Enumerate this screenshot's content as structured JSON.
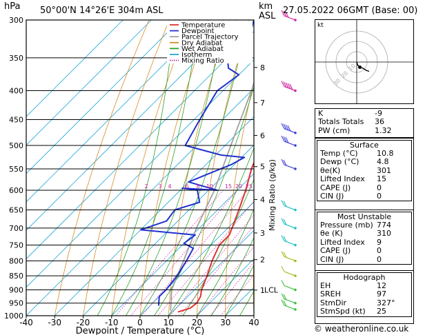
{
  "header": {
    "hpa_label": "hPa",
    "location": "50°00'N  14°26'E  304m  ASL",
    "km_label": "km",
    "asl_label": "ASL",
    "datetime": "27.05.2022  06GMT  (Base: 00)"
  },
  "chart_data": {
    "type": "skew-t",
    "title": "50°00'N  14°26'E  304m  ASL",
    "xlabel": "Dewpoint / Temperature (°C)",
    "ylabel": "hPa",
    "right_axis_label": "Mixing Ratio (g/kg)",
    "xlim": [
      -40,
      40
    ],
    "ylim": [
      1000,
      300
    ],
    "pressure_ticks": [
      300,
      350,
      400,
      450,
      500,
      550,
      600,
      650,
      700,
      750,
      800,
      850,
      900,
      950,
      1000
    ],
    "temp_ticks": [
      -40,
      -30,
      -20,
      -10,
      0,
      10,
      20,
      30,
      40
    ],
    "km_ticks": [
      {
        "label": "8",
        "p": 364
      },
      {
        "label": "7",
        "p": 420
      },
      {
        "label": "6",
        "p": 480
      },
      {
        "label": "5",
        "p": 545
      },
      {
        "label": "4",
        "p": 623
      },
      {
        "label": "3",
        "p": 714
      },
      {
        "label": "2",
        "p": 796
      },
      {
        "label": "1",
        "p": 901
      }
    ],
    "lcl_label": "LCL",
    "lcl_p": 900,
    "mixing_ratio_labels": [
      "2",
      "3",
      "4",
      "6",
      "8",
      "10",
      "15",
      "20",
      "25"
    ],
    "legend": [
      "Temperature",
      "Dewpoint",
      "Parcel Trajectory",
      "Dry Adiabat",
      "Wet Adiabat",
      "Isotherm",
      "Mixing Ratio"
    ],
    "temperature_profile": [
      {
        "p": 985,
        "t": 12
      },
      {
        "p": 970,
        "t": 15
      },
      {
        "p": 950,
        "t": 15.5
      },
      {
        "p": 925,
        "t": 14.5
      },
      {
        "p": 900,
        "t": 12.5
      },
      {
        "p": 850,
        "t": 9.5
      },
      {
        "p": 800,
        "t": 6
      },
      {
        "p": 750,
        "t": 3
      },
      {
        "p": 720,
        "t": 3
      },
      {
        "p": 700,
        "t": 1.5
      },
      {
        "p": 650,
        "t": -2.5
      },
      {
        "p": 600,
        "t": -7
      },
      {
        "p": 550,
        "t": -12.5
      },
      {
        "p": 500,
        "t": -17.5
      },
      {
        "p": 450,
        "t": -24.5
      },
      {
        "p": 400,
        "t": -31.5
      },
      {
        "p": 350,
        "t": -39.5
      },
      {
        "p": 300,
        "t": -48
      }
    ],
    "dewpoint_profile": [
      {
        "p": 960,
        "t": 3
      },
      {
        "p": 925,
        "t": 0
      },
      {
        "p": 900,
        "t": 0
      },
      {
        "p": 850,
        "t": -1
      },
      {
        "p": 800,
        "t": -3
      },
      {
        "p": 760,
        "t": -5
      },
      {
        "p": 745,
        "t": -10
      },
      {
        "p": 720,
        "t": -9
      },
      {
        "p": 705,
        "t": -30
      },
      {
        "p": 680,
        "t": -24
      },
      {
        "p": 650,
        "t": -25
      },
      {
        "p": 630,
        "t": -19
      },
      {
        "p": 600,
        "t": -24
      },
      {
        "p": 595,
        "t": -30
      },
      {
        "p": 600,
        "t": -17
      },
      {
        "p": 580,
        "t": -30
      },
      {
        "p": 540,
        "t": -21
      },
      {
        "p": 525,
        "t": -19
      },
      {
        "p": 520,
        "t": -28
      },
      {
        "p": 500,
        "t": -44
      },
      {
        "p": 450,
        "t": -48
      },
      {
        "p": 400,
        "t": -52
      },
      {
        "p": 375,
        "t": -50
      },
      {
        "p": 365,
        "t": -56
      },
      {
        "p": 350,
        "t": -60
      },
      {
        "p": 335,
        "t": -57
      },
      {
        "p": 300,
        "t": -64
      }
    ],
    "parcel_profile": [
      {
        "p": 980,
        "t": 9
      },
      {
        "p": 900,
        "t": 2
      },
      {
        "p": 850,
        "t": -1
      },
      {
        "p": 800,
        "t": -4
      },
      {
        "p": 700,
        "t": -11
      },
      {
        "p": 600,
        "t": -18
      },
      {
        "p": 500,
        "t": -28
      },
      {
        "p": 400,
        "t": -40
      },
      {
        "p": 300,
        "t": -57
      }
    ],
    "wind_barbs": [
      {
        "p": 300,
        "speed": 30
      },
      {
        "p": 400,
        "speed": 45
      },
      {
        "p": 475,
        "speed": 35
      },
      {
        "p": 500,
        "speed": 30
      },
      {
        "p": 550,
        "speed": 20
      },
      {
        "p": 650,
        "speed": 15
      },
      {
        "p": 700,
        "speed": 15
      },
      {
        "p": 750,
        "speed": 15
      },
      {
        "p": 800,
        "speed": 15
      },
      {
        "p": 850,
        "speed": 10
      },
      {
        "p": 900,
        "speed": 10
      },
      {
        "p": 950,
        "speed": 15
      },
      {
        "p": 975,
        "speed": 15
      }
    ]
  },
  "hodograph": {
    "unit_label": "kt",
    "ring_labels": [
      "10",
      "20",
      "30"
    ],
    "points": [
      [
        0,
        0
      ],
      [
        1,
        -3
      ],
      [
        3,
        -5
      ],
      [
        6,
        -6
      ],
      [
        9,
        -8
      ],
      [
        12,
        -9
      ]
    ]
  },
  "stats": {
    "top": [
      {
        "label": "K",
        "value": "-9"
      },
      {
        "label": "Totals Totals",
        "value": "36"
      },
      {
        "label": "PW (cm)",
        "value": "1.32"
      }
    ],
    "surface": {
      "title": "Surface",
      "rows": [
        {
          "label": "Temp (°C)",
          "value": "10.8"
        },
        {
          "label": "Dewp (°C)",
          "value": "4.8"
        },
        {
          "label": "θe(K)",
          "value": "301"
        },
        {
          "label": "Lifted Index",
          "value": "15"
        },
        {
          "label": "CAPE (J)",
          "value": "0"
        },
        {
          "label": "CIN (J)",
          "value": "0"
        }
      ]
    },
    "most_unstable": {
      "title": "Most Unstable",
      "rows": [
        {
          "label": "Pressure (mb)",
          "value": "774"
        },
        {
          "label": "θe (K)",
          "value": "310"
        },
        {
          "label": "Lifted Index",
          "value": "9"
        },
        {
          "label": "CAPE (J)",
          "value": "0"
        },
        {
          "label": "CIN (J)",
          "value": "0"
        }
      ]
    },
    "hodograph_box": {
      "title": "Hodograph",
      "rows": [
        {
          "label": "EH",
          "value": "12"
        },
        {
          "label": "SREH",
          "value": "97"
        },
        {
          "label": "StmDir",
          "value": "327°"
        },
        {
          "label": "StmSpd (kt)",
          "value": "25"
        }
      ]
    }
  },
  "footer": {
    "credit": "© weatheronline.co.uk"
  },
  "colors": {
    "temperature": "#e03030",
    "dewpoint": "#2030d0",
    "parcel": "#a0a0a0",
    "dry_adiabat": "#d88a20",
    "wet_adiabat": "#2aa02a",
    "isotherm": "#20a8d8",
    "mixing_ratio": "#d020a0"
  }
}
